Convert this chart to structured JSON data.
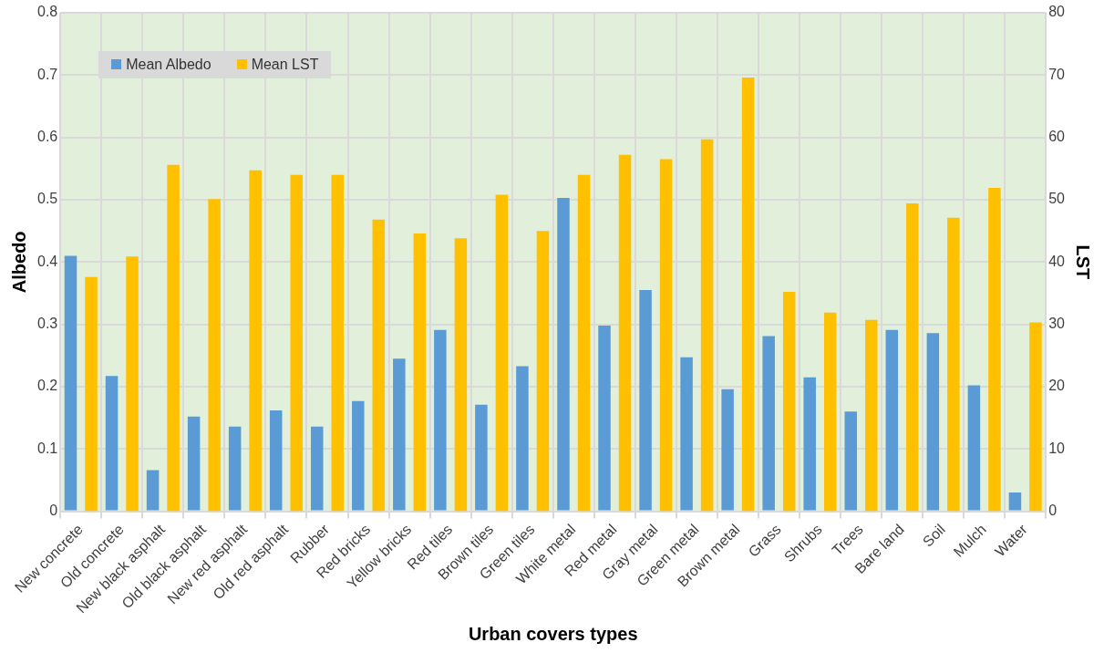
{
  "chart_data": {
    "type": "bar",
    "xlabel": "Urban covers types",
    "ylabel": "Albedo",
    "y2label": "LST",
    "categories": [
      "New concrete",
      "Old concrete",
      "New black asphalt",
      "Old black asphalt",
      "New red asphalt",
      "Old red asphalt",
      "Rubber",
      "Red bricks",
      "Yellow bricks",
      "Red tiles",
      "Brown tiles",
      "Green tiles",
      "White metal",
      "Red metal",
      "Gray metal",
      "Green metal",
      "Brown metal",
      "Grass",
      "Shrubs",
      "Trees",
      "Bare land",
      "Soil",
      "Mulch",
      "Water"
    ],
    "series": [
      {
        "name": "Mean Albedo",
        "color": "#5b9bd5",
        "values": [
          0.41,
          0.217,
          0.066,
          0.152,
          0.136,
          0.162,
          0.136,
          0.177,
          0.245,
          0.291,
          0.171,
          0.233,
          0.503,
          0.298,
          0.355,
          0.247,
          0.196,
          0.281,
          0.215,
          0.16,
          0.291,
          0.286,
          0.202,
          0.03
        ]
      },
      {
        "name": "Mean LST",
        "color": "#ffc000",
        "axis": "y2",
        "values": [
          37.6,
          40.9,
          55.6,
          50.1,
          54.7,
          54.0,
          54.0,
          46.8,
          44.6,
          43.8,
          50.8,
          45.0,
          54.0,
          57.2,
          56.5,
          59.7,
          69.6,
          35.2,
          31.9,
          30.7,
          49.4,
          47.1,
          51.9,
          30.3
        ]
      }
    ],
    "ylim": [
      0,
      0.8
    ],
    "yticks": [
      0,
      0.1,
      0.2,
      0.3,
      0.4,
      0.5,
      0.6,
      0.7,
      0.8
    ],
    "y2lim": [
      0,
      80
    ],
    "y2ticks": [
      0,
      10,
      20,
      30,
      40,
      50,
      60,
      70,
      80
    ],
    "grid": true,
    "legend": "top left"
  }
}
